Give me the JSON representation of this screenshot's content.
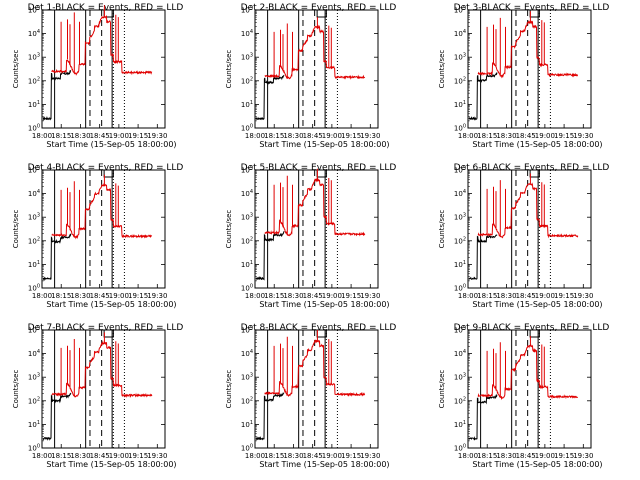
{
  "chart_data": [
    {
      "type": "line",
      "title": "Det 1-BLACK = Events, RED = LLD",
      "xlabel": "Start Time (15-Sep-05 18:00:00)",
      "ylabel": "Counts/sec",
      "yscale": "log",
      "ylim": [
        1,
        100000
      ],
      "xlim": [
        0,
        40
      ],
      "x_tick_labels": [
        "18:00",
        "18:15",
        "18:30",
        "18:45",
        "19:00",
        "19:15",
        "19:30"
      ],
      "y_tick_labels": [
        "10^0",
        "10^1",
        "10^2",
        "10^3",
        "10^4",
        "10^5"
      ],
      "series": [
        {
          "name": "Events",
          "color": "#000000",
          "key": "events",
          "trace_start": [
            0.3,
            15.8
          ],
          "trace_end": [
            5.5,
            9.5
          ],
          "level": 1
        },
        {
          "name": "LLD",
          "color": "#e00000",
          "key": "lld",
          "trace_start": [
            3.2,
            15.8
          ],
          "trace_end": [
            5.5,
            35.8
          ],
          "level": 1
        }
      ],
      "vlines_solid": [
        4.1,
        14.2,
        22.8
      ],
      "vlines_dashed": [
        15.6,
        19.4
      ],
      "vlines_dotted": [
        23.2,
        26.8
      ],
      "marker_box": [
        20.2,
        23.2
      ]
    },
    {
      "type": "line",
      "title": "Det 2-BLACK = Events, RED = LLD",
      "xlabel": "Start Time (15-Sep-05 18:00:00)",
      "ylabel": "Counts/sec",
      "yscale": "log",
      "ylim": [
        1,
        100000
      ],
      "xlim": [
        0,
        40
      ],
      "x_tick_labels": [
        "18:00",
        "18:15",
        "18:30",
        "18:45",
        "19:00",
        "19:15",
        "19:30"
      ],
      "y_tick_labels": [
        "10^0",
        "10^1",
        "10^2",
        "10^3",
        "10^4",
        "10^5"
      ],
      "series": [
        {
          "name": "Events",
          "color": "#000000",
          "key": "events",
          "trace_start": [
            0.3,
            15.8
          ],
          "trace_end": [
            5.5,
            9.5
          ],
          "level": 0.9
        },
        {
          "name": "LLD",
          "color": "#e00000",
          "key": "lld",
          "trace_start": [
            3.2,
            15.8
          ],
          "trace_end": [
            5.5,
            35.8
          ],
          "level": 0.9
        }
      ],
      "vlines_solid": [
        4.1,
        14.2,
        22.8
      ],
      "vlines_dashed": [
        15.6,
        19.4
      ],
      "vlines_dotted": [
        23.2,
        26.8
      ],
      "marker_box": [
        20.2,
        23.2
      ]
    },
    {
      "type": "line",
      "title": "Det 3-BLACK = Events, RED = LLD",
      "xlabel": "Start Time (15-Sep-05 18:00:00)",
      "ylabel": "Counts/sec",
      "yscale": "log",
      "ylim": [
        1,
        100000
      ],
      "xlim": [
        0,
        40
      ],
      "x_tick_labels": [
        "18:00",
        "18:15",
        "18:30",
        "18:45",
        "19:00",
        "19:15",
        "19:30"
      ],
      "y_tick_labels": [
        "10^0",
        "10^1",
        "10^2",
        "10^3",
        "10^4",
        "10^5"
      ],
      "series": [
        {
          "name": "Events",
          "color": "#000000",
          "key": "events",
          "trace_start": [
            0.3,
            15.8
          ],
          "trace_end": [
            5.5,
            9.5
          ],
          "level": 0.95
        },
        {
          "name": "LLD",
          "color": "#e00000",
          "key": "lld",
          "trace_start": [
            3.2,
            15.8
          ],
          "trace_end": [
            5.5,
            35.8
          ],
          "level": 0.95
        }
      ],
      "vlines_solid": [
        4.1,
        14.2,
        22.8
      ],
      "vlines_dashed": [
        15.6,
        19.4
      ],
      "vlines_dotted": [
        23.2,
        26.8
      ],
      "marker_box": [
        20.2,
        23.2
      ]
    },
    {
      "type": "line",
      "title": "Det 4-BLACK = Events, RED = LLD",
      "xlabel": "Start Time (15-Sep-05 18:00:00)",
      "ylabel": "Counts/sec",
      "yscale": "log",
      "ylim": [
        1,
        100000
      ],
      "xlim": [
        0,
        40
      ],
      "x_tick_labels": [
        "18:00",
        "18:15",
        "18:30",
        "18:45",
        "19:00",
        "19:15",
        "19:30"
      ],
      "y_tick_labels": [
        "10^0",
        "10^1",
        "10^2",
        "10^3",
        "10^4",
        "10^5"
      ],
      "series": [
        {
          "name": "Events",
          "color": "#000000",
          "key": "events",
          "trace_start": [
            0.3,
            15.8
          ],
          "trace_end": [
            5.5,
            9.5
          ],
          "level": 0.92
        },
        {
          "name": "LLD",
          "color": "#e00000",
          "key": "lld",
          "trace_start": [
            3.2,
            15.8
          ],
          "trace_end": [
            5.5,
            35.8
          ],
          "level": 0.92
        }
      ],
      "vlines_solid": [
        4.1,
        14.2,
        22.8
      ],
      "vlines_dashed": [
        15.6,
        19.4
      ],
      "vlines_dotted": [
        23.2,
        26.8
      ],
      "marker_box": [
        20.2,
        23.2
      ]
    },
    {
      "type": "line",
      "title": "Det 5-BLACK = Events, RED = LLD",
      "xlabel": "Start Time (15-Sep-05 18:00:00)",
      "ylabel": "Counts/sec",
      "yscale": "log",
      "ylim": [
        1,
        100000
      ],
      "xlim": [
        0,
        40
      ],
      "x_tick_labels": [
        "18:00",
        "18:15",
        "18:30",
        "18:45",
        "19:00",
        "19:15",
        "19:30"
      ],
      "y_tick_labels": [
        "10^0",
        "10^1",
        "10^2",
        "10^3",
        "10^4",
        "10^5"
      ],
      "series": [
        {
          "name": "Events",
          "color": "#000000",
          "key": "events",
          "trace_start": [
            0.3,
            15.8
          ],
          "trace_end": [
            5.5,
            9.5
          ],
          "level": 0.97
        },
        {
          "name": "LLD",
          "color": "#e00000",
          "key": "lld",
          "trace_start": [
            3.2,
            15.8
          ],
          "trace_end": [
            5.5,
            35.8
          ],
          "level": 0.97
        }
      ],
      "vlines_solid": [
        4.1,
        14.2,
        22.8
      ],
      "vlines_dashed": [
        15.6,
        19.4
      ],
      "vlines_dotted": [
        23.2,
        26.8
      ],
      "marker_box": [
        20.2,
        23.2
      ]
    },
    {
      "type": "line",
      "title": "Det 6-BLACK = Events, RED = LLD",
      "xlabel": "Start Time (15-Sep-05 18:00:00)",
      "ylabel": "Counts/sec",
      "yscale": "log",
      "ylim": [
        1,
        100000
      ],
      "xlim": [
        0,
        40
      ],
      "x_tick_labels": [
        "18:00",
        "18:15",
        "18:30",
        "18:45",
        "19:00",
        "19:15",
        "19:30"
      ],
      "y_tick_labels": [
        "10^0",
        "10^1",
        "10^2",
        "10^3",
        "10^4",
        "10^5"
      ],
      "series": [
        {
          "name": "Events",
          "color": "#000000",
          "key": "events",
          "trace_start": [
            0.3,
            15.8
          ],
          "trace_end": [
            5.5,
            9.5
          ],
          "level": 0.93
        },
        {
          "name": "LLD",
          "color": "#e00000",
          "key": "lld",
          "trace_start": [
            3.2,
            15.8
          ],
          "trace_end": [
            5.5,
            35.8
          ],
          "level": 0.93
        }
      ],
      "vlines_solid": [
        4.1,
        14.2,
        22.8
      ],
      "vlines_dashed": [
        15.6,
        19.4
      ],
      "vlines_dotted": [
        23.2,
        26.8
      ],
      "marker_box": [
        20.2,
        23.2
      ]
    },
    {
      "type": "line",
      "title": "Det 7-BLACK = Events, RED = LLD",
      "xlabel": "Start Time (15-Sep-05 18:00:00)",
      "ylabel": "Counts/sec",
      "yscale": "log",
      "ylim": [
        1,
        100000
      ],
      "xlim": [
        0,
        40
      ],
      "x_tick_labels": [
        "18:00",
        "18:15",
        "18:30",
        "18:45",
        "19:00",
        "19:15",
        "19:30"
      ],
      "y_tick_labels": [
        "10^0",
        "10^1",
        "10^2",
        "10^3",
        "10^4",
        "10^5"
      ],
      "series": [
        {
          "name": "Events",
          "color": "#000000",
          "key": "events",
          "trace_start": [
            0.3,
            15.8
          ],
          "trace_end": [
            5.5,
            9.5
          ],
          "level": 0.94
        },
        {
          "name": "LLD",
          "color": "#e00000",
          "key": "lld",
          "trace_start": [
            3.2,
            15.8
          ],
          "trace_end": [
            5.5,
            35.8
          ],
          "level": 0.94
        }
      ],
      "vlines_solid": [
        4.1,
        14.2,
        22.8
      ],
      "vlines_dashed": [
        15.6,
        19.4
      ],
      "vlines_dotted": [
        23.2,
        26.8
      ],
      "marker_box": [
        20.2,
        23.2
      ]
    },
    {
      "type": "line",
      "title": "Det 8-BLACK = Events, RED = LLD",
      "xlabel": "Start Time (15-Sep-05 18:00:00)",
      "ylabel": "Counts/sec",
      "yscale": "log",
      "ylim": [
        1,
        100000
      ],
      "xlim": [
        0,
        40
      ],
      "x_tick_labels": [
        "18:00",
        "18:15",
        "18:30",
        "18:45",
        "19:00",
        "19:15",
        "19:30"
      ],
      "y_tick_labels": [
        "10^0",
        "10^1",
        "10^2",
        "10^3",
        "10^4",
        "10^5"
      ],
      "series": [
        {
          "name": "Events",
          "color": "#000000",
          "key": "events",
          "trace_start": [
            0.3,
            15.8
          ],
          "trace_end": [
            5.5,
            9.5
          ],
          "level": 0.96
        },
        {
          "name": "LLD",
          "color": "#e00000",
          "key": "lld",
          "trace_start": [
            3.2,
            15.8
          ],
          "trace_end": [
            5.5,
            35.8
          ],
          "level": 0.96
        }
      ],
      "vlines_solid": [
        4.1,
        14.2,
        22.8
      ],
      "vlines_dashed": [
        15.6,
        19.4
      ],
      "vlines_dotted": [
        23.2,
        26.8
      ],
      "marker_box": [
        20.2,
        23.2
      ]
    },
    {
      "type": "line",
      "title": "Det 9-BLACK = Events, RED = LLD",
      "xlabel": "Start Time (15-Sep-05 18:00:00)",
      "ylabel": "Counts/sec",
      "yscale": "log",
      "ylim": [
        1,
        100000
      ],
      "xlim": [
        0,
        40
      ],
      "x_tick_labels": [
        "18:00",
        "18:15",
        "18:30",
        "18:45",
        "19:00",
        "19:15",
        "19:30"
      ],
      "y_tick_labels": [
        "10^0",
        "10^1",
        "10^2",
        "10^3",
        "10^4",
        "10^5"
      ],
      "series": [
        {
          "name": "Events",
          "color": "#000000",
          "key": "events",
          "trace_start": [
            0.3,
            15.8
          ],
          "trace_end": [
            5.5,
            9.5
          ],
          "level": 0.91
        },
        {
          "name": "LLD",
          "color": "#e00000",
          "key": "lld",
          "trace_start": [
            3.2,
            15.8
          ],
          "trace_end": [
            5.5,
            35.8
          ],
          "level": 0.91
        }
      ],
      "vlines_solid": [
        4.1,
        14.2,
        22.8
      ],
      "vlines_dashed": [
        15.6,
        19.4
      ],
      "vlines_dotted": [
        23.2,
        26.8
      ],
      "marker_box": [
        20.2,
        23.2
      ]
    }
  ]
}
